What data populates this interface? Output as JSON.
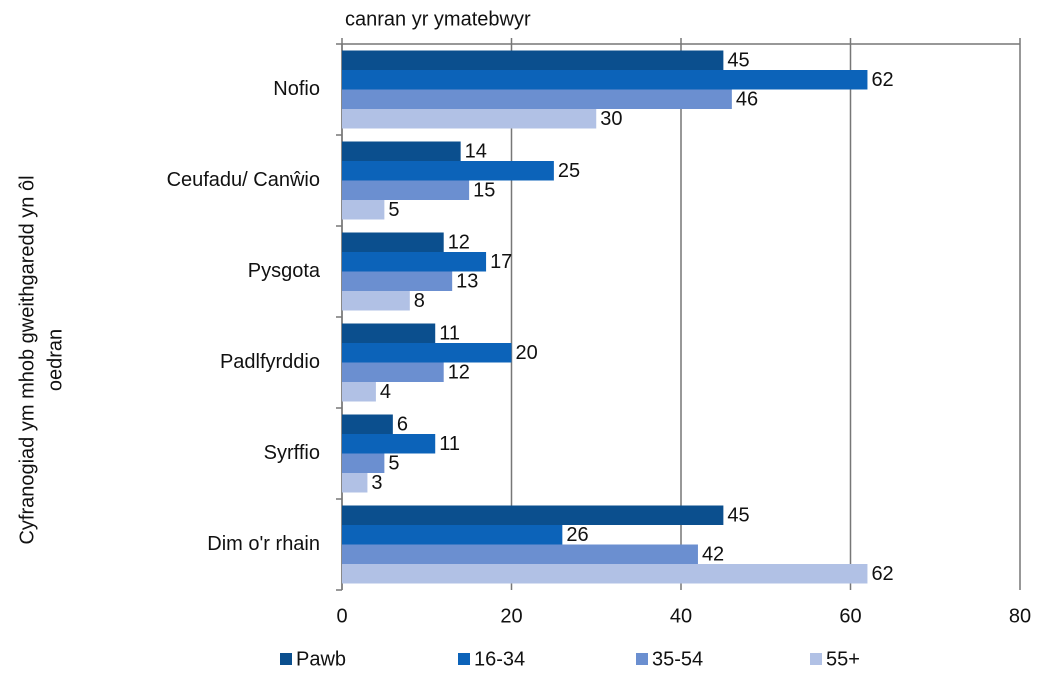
{
  "chart_data": {
    "type": "bar",
    "orientation": "horizontal",
    "title": "canran yr ymatebwyr",
    "ylabel": [
      "Cyfranogiad ym mhob gweithgaredd yn ôl",
      "oedran"
    ],
    "categories": [
      "Nofio",
      "Ceufadu/ Canŵio",
      "Pysgota",
      "Padlfyrddio",
      "Syrffio",
      "Dim o'r rhain"
    ],
    "series": [
      {
        "name": "Pawb",
        "color": "#0b4f8e",
        "values": [
          45,
          14,
          12,
          11,
          6,
          45
        ]
      },
      {
        "name": "16-34",
        "color": "#0c63b9",
        "values": [
          62,
          25,
          17,
          20,
          11,
          26
        ]
      },
      {
        "name": "35-54",
        "color": "#6b8fd0",
        "values": [
          46,
          15,
          13,
          12,
          5,
          42
        ]
      },
      {
        "name": "55+",
        "color": "#b1c1e5",
        "values": [
          30,
          5,
          8,
          4,
          3,
          62
        ]
      }
    ],
    "xlim": [
      0,
      80
    ],
    "xticks": [
      0,
      20,
      40,
      60,
      80
    ],
    "grid": true,
    "legend": "bottom"
  }
}
